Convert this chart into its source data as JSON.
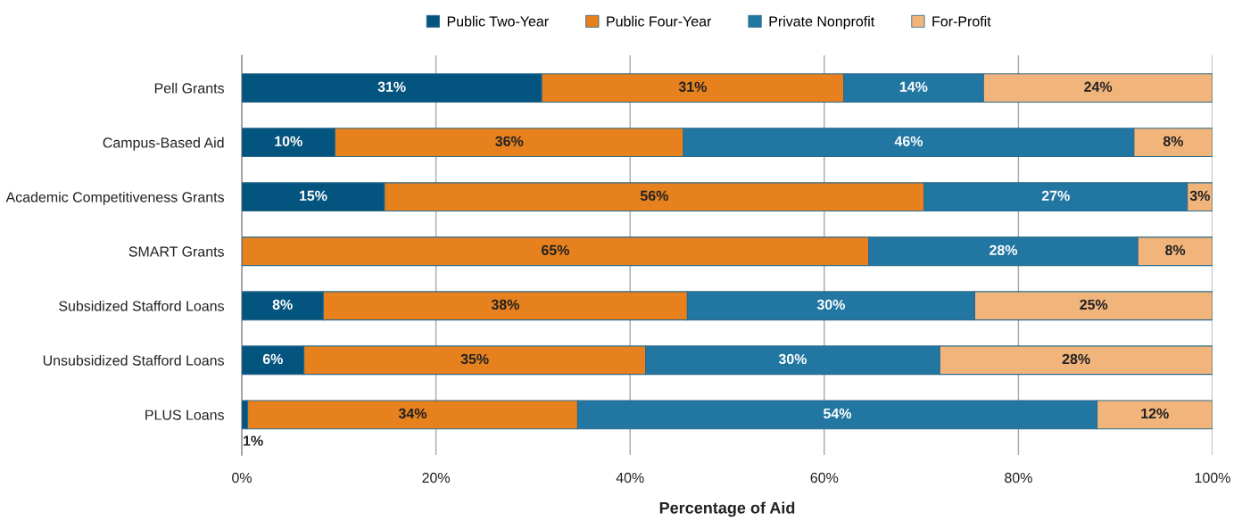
{
  "chart_data": {
    "type": "bar",
    "orientation": "horizontal",
    "stacked": true,
    "xlabel": "Percentage of Aid",
    "categories": [
      "Pell Grants",
      "Campus-Based Aid",
      "Academic Competitiveness Grants",
      "SMART Grants",
      "Subsidized Stafford Loans",
      "Unsubsidized Stafford Loans",
      "PLUS Loans"
    ],
    "series": [
      {
        "name": "Public Two-Year",
        "color": "#03547e",
        "values": [
          30.9,
          9.6,
          14.7,
          null,
          8.4,
          6.4,
          0.6
        ],
        "value_labels": [
          "31%",
          "10%",
          "15%",
          null,
          "8%",
          "6%",
          "1%"
        ]
      },
      {
        "name": "Public Four-Year",
        "color": "#e6811e",
        "values": [
          31.1,
          35.9,
          55.6,
          64.6,
          37.5,
          35.2,
          34.0
        ],
        "value_labels": [
          "31%",
          "36%",
          "56%",
          "65%",
          "38%",
          "35%",
          "34%"
        ]
      },
      {
        "name": "Private Nonprofit",
        "color": "#2176a2",
        "values": [
          14.4,
          46.4,
          27.1,
          27.7,
          29.6,
          30.3,
          53.5
        ],
        "value_labels": [
          "14%",
          "46%",
          "27%",
          "28%",
          "30%",
          "30%",
          "54%"
        ]
      },
      {
        "name": "For-Profit",
        "color": "#f1b47b",
        "values": [
          23.6,
          8.1,
          2.6,
          7.7,
          24.5,
          28.1,
          11.9
        ],
        "value_labels": [
          "24%",
          "8%",
          "3%",
          "8%",
          "25%",
          "28%",
          "12%"
        ]
      }
    ],
    "xlim": [
      0,
      100
    ],
    "xticks": [
      {
        "value": 0,
        "label": "0%"
      },
      {
        "value": 20,
        "label": "20%"
      },
      {
        "value": 40,
        "label": "40%"
      },
      {
        "value": 60,
        "label": "60%"
      },
      {
        "value": 80,
        "label": "80%"
      },
      {
        "value": 100,
        "label": "100%"
      }
    ],
    "grid": "x",
    "legend": "top"
  }
}
